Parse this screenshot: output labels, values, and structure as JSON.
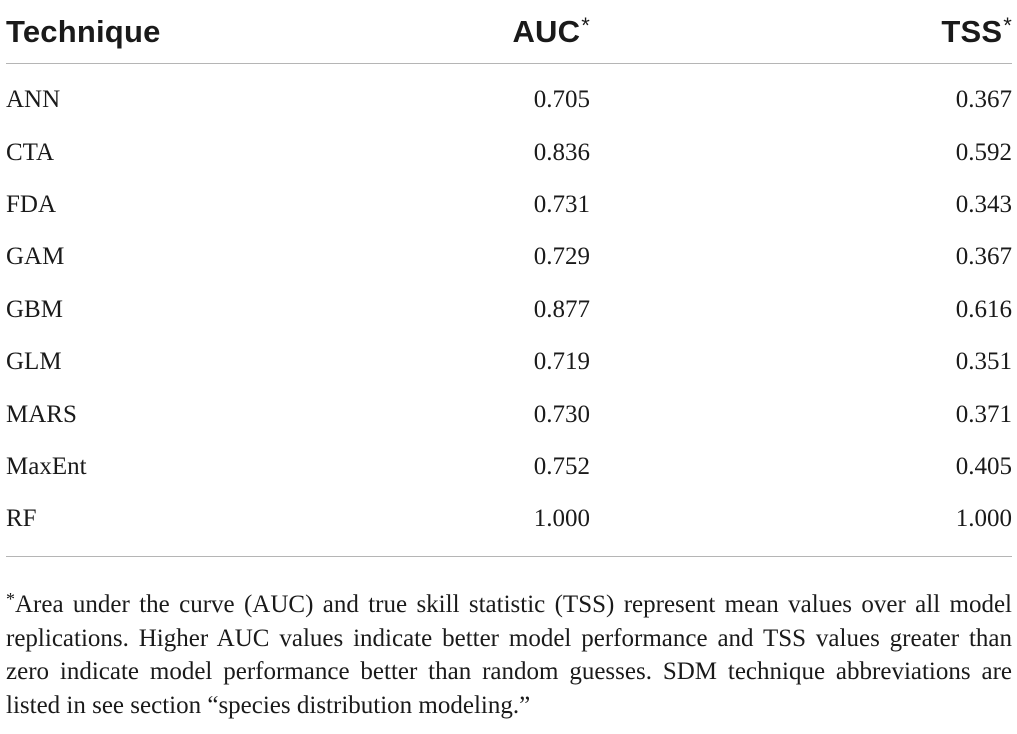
{
  "table": {
    "headers": [
      {
        "label": "Technique",
        "sup": ""
      },
      {
        "label": "AUC",
        "sup": "*"
      },
      {
        "label": "TSS",
        "sup": "*"
      }
    ],
    "rows": [
      {
        "technique": "ANN",
        "auc": "0.705",
        "tss": "0.367"
      },
      {
        "technique": "CTA",
        "auc": "0.836",
        "tss": "0.592"
      },
      {
        "technique": "FDA",
        "auc": "0.731",
        "tss": "0.343"
      },
      {
        "technique": "GAM",
        "auc": "0.729",
        "tss": "0.367"
      },
      {
        "technique": "GBM",
        "auc": "0.877",
        "tss": "0.616"
      },
      {
        "technique": "GLM",
        "auc": "0.719",
        "tss": "0.351"
      },
      {
        "technique": "MARS",
        "auc": "0.730",
        "tss": "0.371"
      },
      {
        "technique": "MaxEnt",
        "auc": "0.752",
        "tss": "0.405"
      },
      {
        "technique": "RF",
        "auc": "1.000",
        "tss": "1.000"
      }
    ]
  },
  "footnote": {
    "marker": "*",
    "text": "Area under the curve (AUC) and true skill statistic (TSS) represent mean values over all model replications. Higher AUC values indicate better model performance and TSS values greater than zero indicate model performance better than random guesses. SDM technique abbreviations are listed in see section “species distribution modeling.”"
  }
}
